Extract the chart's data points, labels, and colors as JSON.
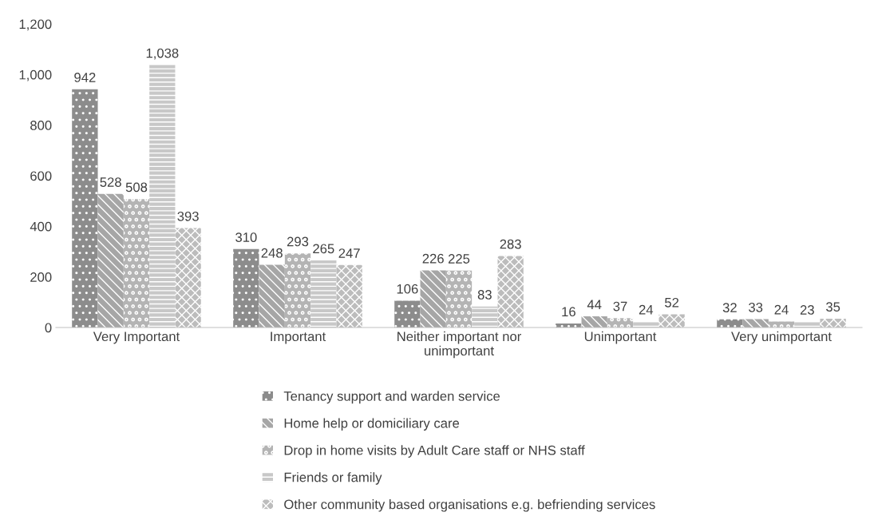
{
  "chart_data": {
    "type": "bar",
    "categories": [
      "Very Important",
      "Important",
      "Neither important nor\nunimportant",
      "Unimportant",
      "Very unimportant"
    ],
    "series": [
      {
        "name": "Tenancy support and warden service",
        "color": "#8c8c8c",
        "values": [
          942,
          310,
          106,
          16,
          32
        ],
        "value_labels": [
          "942",
          "310",
          "106",
          "16",
          "32"
        ]
      },
      {
        "name": "Home help or domiciliary care",
        "color": "#a6a6a6",
        "values": [
          528,
          248,
          226,
          44,
          33
        ],
        "value_labels": [
          "528",
          "248",
          "226",
          "44",
          "33"
        ]
      },
      {
        "name": "Drop in home visits by Adult Care staff or NHS staff",
        "color": "#b4b4b4",
        "values": [
          508,
          293,
          225,
          37,
          24
        ],
        "value_labels": [
          "508",
          "293",
          "225",
          "37",
          "24"
        ]
      },
      {
        "name": "Friends or family",
        "color": "#c8c8c8",
        "values": [
          1038,
          265,
          83,
          24,
          23
        ],
        "value_labels": [
          "1,038",
          "265",
          "83",
          "24",
          "23"
        ]
      },
      {
        "name": "Other community based organisations e.g. befriending services",
        "color": "#bcbcbc",
        "values": [
          393,
          247,
          283,
          52,
          35
        ],
        "value_labels": [
          "393",
          "247",
          "283",
          "52",
          "35"
        ]
      }
    ],
    "ylim": [
      0,
      1200
    ],
    "yticks": [
      0,
      {
        "value": 200,
        "label": "200"
      },
      {
        "value": 400,
        "label": "400"
      },
      {
        "value": 600,
        "label": "600"
      },
      {
        "value": 800,
        "label": "800"
      },
      {
        "value": 1000,
        "label": "1,000"
      },
      {
        "value": 1200,
        "label": "1,200"
      }
    ],
    "grid": false,
    "legend": "bottom"
  }
}
